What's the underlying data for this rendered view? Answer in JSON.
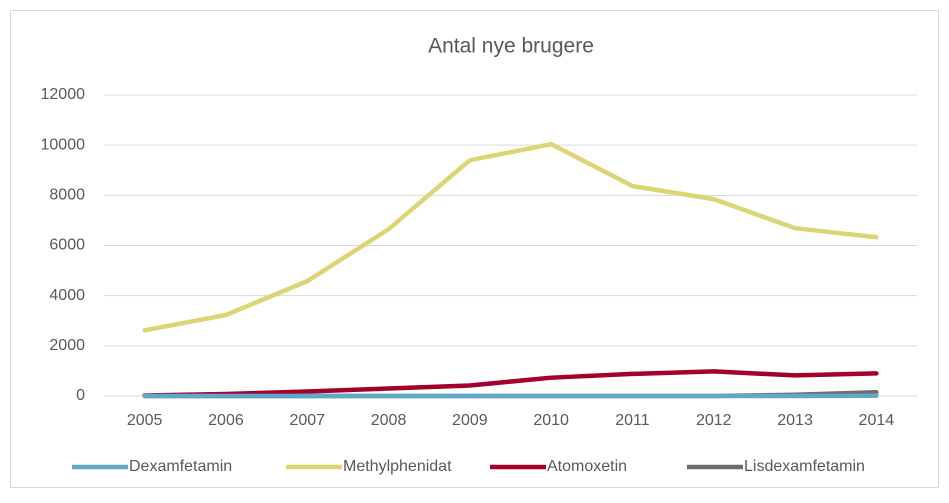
{
  "chart_data": {
    "type": "line",
    "title": "Antal nye brugere",
    "categories": [
      "2005",
      "2006",
      "2007",
      "2008",
      "2009",
      "2010",
      "2011",
      "2012",
      "2013",
      "2014"
    ],
    "series": [
      {
        "name": "Dexamfetamin",
        "color": "#5fa8c8",
        "values": [
          0,
          0,
          0,
          0,
          0,
          0,
          0,
          0,
          0,
          10
        ]
      },
      {
        "name": "Methylphenidat",
        "color": "#dcd475",
        "values": [
          2620,
          3230,
          4580,
          6650,
          9400,
          10040,
          8370,
          7850,
          6690,
          6330
        ]
      },
      {
        "name": "Atomoxetin",
        "color": "#a3002c",
        "values": [
          20,
          80,
          180,
          300,
          420,
          730,
          880,
          980,
          820,
          900
        ]
      },
      {
        "name": "Lisdexamfetamin",
        "color": "#6e6e6e",
        "values": [
          0,
          0,
          0,
          0,
          0,
          0,
          0,
          0,
          50,
          150
        ]
      }
    ],
    "ylim": [
      0,
      12000
    ],
    "yticks": [
      0,
      2000,
      4000,
      6000,
      8000,
      10000,
      12000
    ],
    "grid": true,
    "legend": "bottom"
  }
}
